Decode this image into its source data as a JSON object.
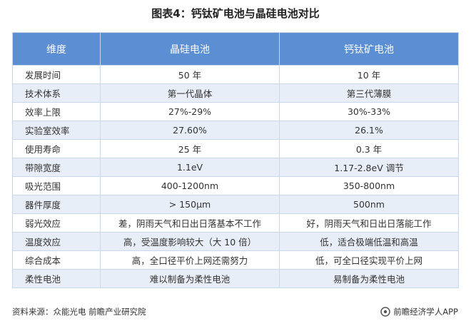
{
  "title": "图表4：钙钛矿电池与晶硅电池对比",
  "table": {
    "headers": [
      "维度",
      "晶硅电池",
      "钙钛矿电池"
    ],
    "rows": [
      [
        "发展时间",
        "50 年",
        "10 年"
      ],
      [
        "技术体系",
        "第一代晶体",
        "第三代薄膜"
      ],
      [
        "效率上限",
        "27%-29%",
        "30%-33%"
      ],
      [
        "实验室效率",
        "27.60%",
        "26.1%"
      ],
      [
        "使用寿命",
        "25 年",
        "0.3 年"
      ],
      [
        "带隙宽度",
        "1.1eV",
        "1.17-2.8eV 调节"
      ],
      [
        "吸光范围",
        "400-1200nm",
        "350-800nm"
      ],
      [
        "器件厚度",
        "> 150μm",
        "500nm"
      ],
      [
        "弱光效应",
        "差，阴雨天气和日出日落基本不工作",
        "好，阴雨天气和日出日落能工作"
      ],
      [
        "温度效应",
        "高，受温度影响较大（大 10 倍）",
        "低，适合极端低温和高温"
      ],
      [
        "综合成本",
        "高，全口径平价上网还需努力",
        "低，可全口径实现平价上网"
      ],
      [
        "柔性电池",
        "难以制备为柔性电池",
        "易制备为柔性电池"
      ]
    ]
  },
  "footer": {
    "source": "资料来源：众能光电 前瞻产业研究院",
    "brand": "前瞻经济学人APP",
    "brand_icon": "brand-logo-icon"
  }
}
